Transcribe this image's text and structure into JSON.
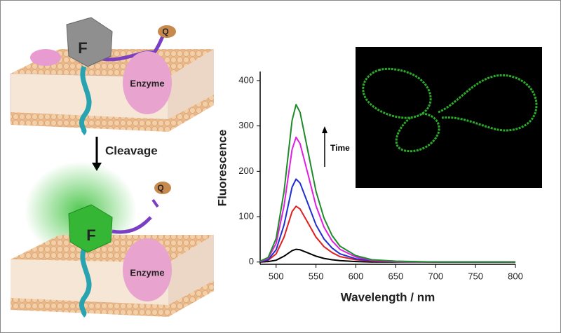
{
  "illustration": {
    "before": {
      "fluorophore": "F",
      "quencher": "Q",
      "enzyme": "Enzyme"
    },
    "step": "Cleavage",
    "after": {
      "fluorophore": "F",
      "quencher": "Q",
      "enzyme": "Enzyme"
    }
  },
  "chart_data": {
    "type": "line",
    "x_label": "Wavelength / nm",
    "y_label": "Fluorescence",
    "annotation": "Time",
    "x": [
      480,
      490,
      500,
      510,
      520,
      525,
      530,
      540,
      550,
      560,
      570,
      580,
      600,
      620,
      650,
      700,
      750,
      800
    ],
    "series": [
      {
        "color": "#000000",
        "values": [
          0,
          1,
          4,
          13,
          25,
          28,
          27,
          20,
          13,
          8,
          5,
          3,
          1,
          0,
          0,
          0,
          0,
          0
        ]
      },
      {
        "color": "#e02020",
        "values": [
          1,
          4,
          18,
          55,
          111,
          123,
          117,
          86,
          55,
          34,
          21,
          12,
          5,
          2,
          1,
          0,
          0,
          0
        ]
      },
      {
        "color": "#1f2ed0",
        "values": [
          1,
          5,
          27,
          82,
          165,
          183,
          174,
          128,
          82,
          51,
          31,
          18,
          7,
          3,
          1,
          0,
          0,
          0
        ]
      },
      {
        "color": "#e020e0",
        "values": [
          1,
          8,
          41,
          124,
          248,
          275,
          261,
          193,
          124,
          77,
          47,
          28,
          11,
          4,
          1,
          0,
          0,
          0
        ]
      },
      {
        "color": "#1e8a2a",
        "values": [
          2,
          10,
          52,
          156,
          312,
          347,
          330,
          243,
          156,
          97,
          59,
          35,
          14,
          5,
          2,
          0,
          0,
          0
        ]
      }
    ],
    "xlim": [
      480,
      800
    ],
    "ylim": [
      -5,
      420
    ],
    "xticks": [
      500,
      550,
      600,
      650,
      700,
      750,
      800
    ],
    "yticks": [
      0,
      100,
      200,
      300,
      400
    ]
  }
}
